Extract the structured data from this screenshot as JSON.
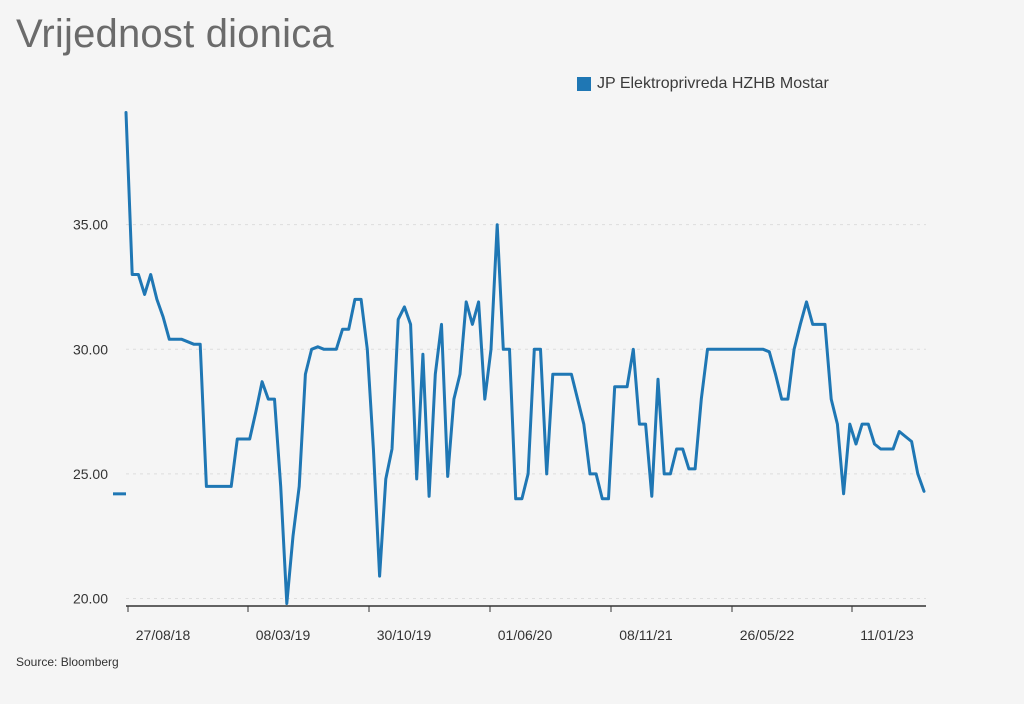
{
  "title": "Vrijednost dionica",
  "source": "Source: Bloomberg",
  "colors": {
    "series": "#1f77b4",
    "grid": "#dddddd",
    "axis": "#333333",
    "background": "#f5f5f5"
  },
  "chart_data": {
    "type": "line",
    "grid": true,
    "legend_position": "top-right",
    "ylim": [
      19.7,
      39.6
    ],
    "y_ticks": [
      20,
      25,
      30,
      35
    ],
    "y_tick_labels": [
      "20.00",
      "25.00",
      "30.00",
      "35.00"
    ],
    "x_tick_labels": [
      "27/08/18",
      "08/03/19",
      "30/10/19",
      "01/06/20",
      "08/11/21",
      "26/05/22",
      "11/01/23"
    ],
    "series": [
      {
        "name": "JP Elektroprivreda HZHB Mostar",
        "values": [
          39.5,
          33.0,
          33.0,
          32.2,
          33.0,
          32.0,
          31.3,
          30.4,
          30.4,
          30.4,
          30.3,
          30.2,
          30.2,
          24.5,
          24.5,
          24.5,
          24.5,
          24.5,
          26.4,
          26.4,
          26.4,
          27.5,
          28.7,
          28.0,
          28.0,
          24.5,
          19.8,
          22.5,
          24.5,
          29.0,
          30.0,
          30.1,
          30.0,
          30.0,
          30.0,
          30.8,
          30.8,
          32.0,
          32.0,
          30.0,
          26.0,
          20.9,
          24.8,
          26.0,
          31.2,
          31.7,
          31.0,
          24.8,
          29.8,
          24.1,
          29.0,
          31.0,
          24.9,
          28.0,
          29.0,
          31.9,
          31.0,
          31.9,
          28.0,
          30.0,
          35.0,
          30.0,
          30.0,
          24.0,
          24.0,
          25.0,
          30.0,
          30.0,
          25.0,
          29.0,
          29.0,
          29.0,
          29.0,
          28.0,
          27.0,
          25.0,
          25.0,
          24.0,
          24.0,
          28.5,
          28.5,
          28.5,
          30.0,
          27.0,
          27.0,
          24.1,
          28.8,
          25.0,
          25.0,
          26.0,
          26.0,
          25.2,
          25.2,
          28.0,
          30.0,
          30.0,
          30.0,
          30.0,
          30.0,
          30.0,
          30.0,
          30.0,
          30.0,
          30.0,
          29.9,
          29.0,
          28.0,
          28.0,
          30.0,
          31.0,
          31.9,
          31.0,
          31.0,
          31.0,
          28.0,
          27.0,
          24.2,
          27.0,
          26.2,
          27.0,
          27.0,
          26.2,
          26.0,
          26.0,
          26.0,
          26.7,
          26.5,
          26.3,
          25.0,
          24.3
        ]
      }
    ]
  }
}
